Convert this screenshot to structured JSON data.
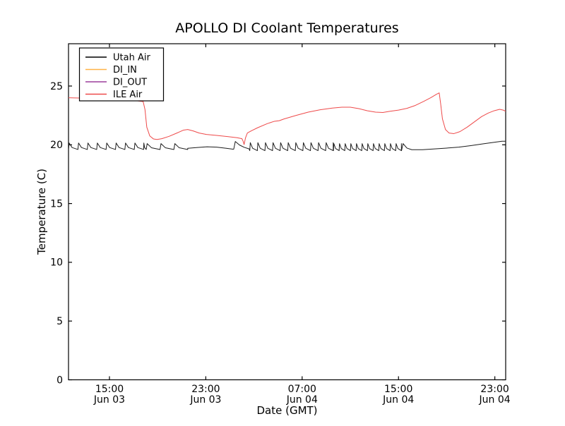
{
  "window": {
    "background": "#ffffff",
    "border_color": "#000000",
    "text_color": "#000000"
  },
  "chart_data": {
    "type": "line",
    "title": "APOLLO DI Coolant Temperatures",
    "xlabel": "Date (GMT)",
    "ylabel": "Temperature (C)",
    "x_units": "hours since Jun 03 00:00 GMT",
    "xlim": [
      11.6,
      47.9
    ],
    "ylim": [
      0,
      28.6
    ],
    "grid": false,
    "yticks": [
      {
        "value": 0,
        "label": "0"
      },
      {
        "value": 5,
        "label": "5"
      },
      {
        "value": 10,
        "label": "10"
      },
      {
        "value": 15,
        "label": "15"
      },
      {
        "value": 20,
        "label": "20"
      },
      {
        "value": 25,
        "label": "25"
      }
    ],
    "xticks": [
      {
        "t": 15,
        "line1": "15:00",
        "line2": "Jun 03"
      },
      {
        "t": 23,
        "line1": "23:00",
        "line2": "Jun 03"
      },
      {
        "t": 31,
        "line1": "07:00",
        "line2": "Jun 04"
      },
      {
        "t": 39,
        "line1": "15:00",
        "line2": "Jun 04"
      },
      {
        "t": 47,
        "line1": "23:00",
        "line2": "Jun 04"
      }
    ],
    "legend": {
      "position": "upper-left",
      "entries": [
        {
          "label": "Utah Air",
          "color": "#000000"
        },
        {
          "label": "DI_IN",
          "color": "#ffb347"
        },
        {
          "label": "DI_OUT",
          "color": "#9b3d9b"
        },
        {
          "label": "ILE Air",
          "color": "#ee4a4a"
        }
      ]
    },
    "series": [
      {
        "name": "Utah Air",
        "color": "#1c1c1c",
        "segments": [
          {
            "type": "sawtooth",
            "t0": 11.6,
            "t1": 18.05,
            "period": 0.78,
            "base": 19.6,
            "peak": 20.15
          },
          {
            "type": "sawtooth",
            "t0": 18.05,
            "t1": 21.5,
            "period": 1.15,
            "base": 19.6,
            "peak": 20.1
          },
          {
            "type": "points",
            "points": [
              [
                21.5,
                19.7
              ],
              [
                22.4,
                19.78
              ],
              [
                23.1,
                19.83
              ],
              [
                23.9,
                19.8
              ],
              [
                24.7,
                19.7
              ],
              [
                25.25,
                19.63
              ]
            ]
          },
          {
            "type": "points",
            "points": [
              [
                25.32,
                19.63
              ],
              [
                25.45,
                20.28
              ],
              [
                25.8,
                19.98
              ],
              [
                26.2,
                19.78
              ],
              [
                26.6,
                19.65
              ]
            ]
          },
          {
            "type": "sawtooth",
            "t0": 26.65,
            "t1": 33.6,
            "period": 0.63,
            "base": 19.5,
            "peak": 20.18
          },
          {
            "type": "sawtooth",
            "t0": 33.6,
            "t1": 39.25,
            "period": 0.47,
            "base": 19.5,
            "peak": 20.1
          },
          {
            "type": "points",
            "points": [
              [
                39.25,
                19.5
              ],
              [
                39.38,
                20.1
              ],
              [
                39.7,
                19.72
              ],
              [
                40.1,
                19.58
              ],
              [
                41.0,
                19.58
              ],
              [
                42.0,
                19.65
              ],
              [
                43.0,
                19.72
              ],
              [
                44.0,
                19.8
              ],
              [
                45.0,
                19.93
              ],
              [
                46.0,
                20.08
              ],
              [
                47.0,
                20.22
              ],
              [
                47.6,
                20.3
              ],
              [
                47.9,
                20.3
              ]
            ]
          }
        ]
      },
      {
        "name": "DI_IN",
        "color": "#ffb347",
        "note": "shown in legend, no visible data in plotted range",
        "segments": []
      },
      {
        "name": "DI_OUT",
        "color": "#9b3d9b",
        "note": "shown in legend, no visible data in plotted range",
        "segments": []
      },
      {
        "name": "ILE Air",
        "color": "#ee4a4a",
        "segments": [
          {
            "type": "points",
            "points": [
              [
                11.6,
                24.0
              ],
              [
                13.5,
                23.95
              ],
              [
                15.5,
                23.85
              ],
              [
                17.2,
                23.75
              ],
              [
                17.8,
                23.68
              ],
              [
                17.95,
                23.0
              ],
              [
                18.1,
                21.5
              ],
              [
                18.35,
                20.75
              ],
              [
                18.65,
                20.5
              ],
              [
                18.95,
                20.45
              ],
              [
                19.35,
                20.52
              ],
              [
                19.95,
                20.72
              ],
              [
                20.6,
                21.0
              ],
              [
                21.15,
                21.25
              ],
              [
                21.5,
                21.3
              ],
              [
                21.95,
                21.18
              ],
              [
                22.45,
                21.0
              ],
              [
                23.05,
                20.88
              ],
              [
                23.9,
                20.8
              ],
              [
                24.8,
                20.7
              ],
              [
                25.6,
                20.6
              ],
              [
                26.0,
                20.52
              ],
              [
                26.1,
                20.3
              ],
              [
                26.18,
                20.02
              ],
              [
                26.3,
                20.6
              ],
              [
                26.45,
                21.0
              ],
              [
                26.8,
                21.2
              ],
              [
                27.3,
                21.45
              ],
              [
                28.1,
                21.8
              ],
              [
                28.7,
                22.0
              ],
              [
                29.1,
                22.05
              ],
              [
                29.5,
                22.2
              ],
              [
                30.5,
                22.5
              ],
              [
                31.5,
                22.78
              ],
              [
                32.5,
                22.98
              ],
              [
                33.5,
                23.12
              ],
              [
                34.3,
                23.2
              ],
              [
                35.0,
                23.2
              ],
              [
                35.7,
                23.08
              ],
              [
                36.4,
                22.9
              ],
              [
                37.1,
                22.78
              ],
              [
                37.7,
                22.75
              ],
              [
                38.3,
                22.85
              ],
              [
                39.0,
                22.95
              ],
              [
                39.7,
                23.1
              ],
              [
                40.4,
                23.35
              ],
              [
                41.1,
                23.7
              ],
              [
                41.7,
                24.02
              ],
              [
                42.15,
                24.3
              ],
              [
                42.38,
                24.42
              ],
              [
                42.5,
                23.5
              ],
              [
                42.65,
                22.2
              ],
              [
                42.9,
                21.3
              ],
              [
                43.2,
                21.0
              ],
              [
                43.6,
                20.95
              ],
              [
                44.1,
                21.12
              ],
              [
                44.7,
                21.5
              ],
              [
                45.3,
                21.95
              ],
              [
                45.9,
                22.4
              ],
              [
                46.45,
                22.7
              ],
              [
                46.95,
                22.9
              ],
              [
                47.4,
                23.02
              ],
              [
                47.7,
                22.95
              ],
              [
                47.9,
                22.85
              ]
            ]
          }
        ]
      }
    ]
  }
}
